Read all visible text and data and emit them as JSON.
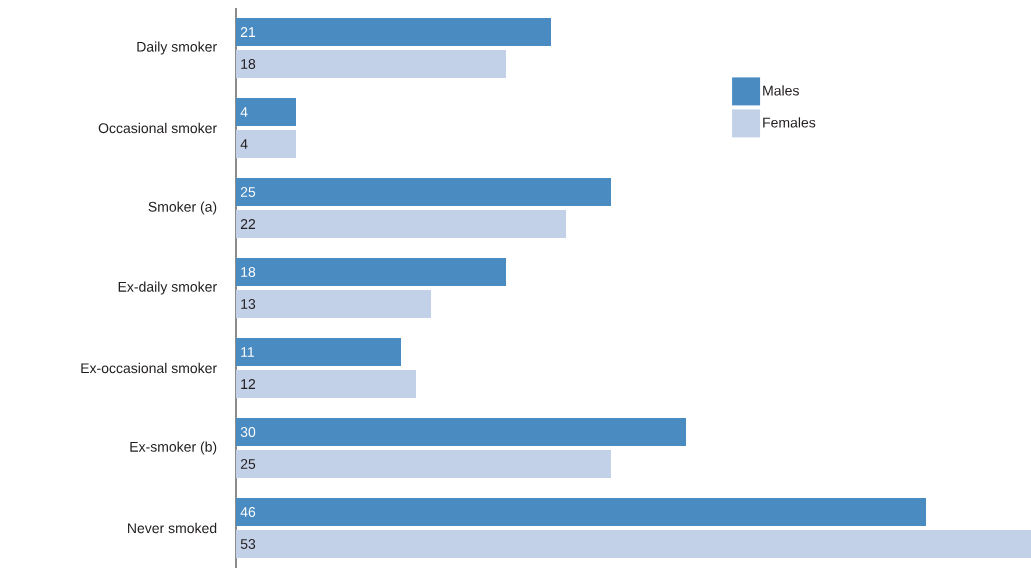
{
  "chart_data": {
    "type": "bar",
    "orientation": "horizontal",
    "categories": [
      "Daily smoker",
      "Occasional smoker",
      "Smoker (a)",
      "Ex-daily smoker",
      "Ex-occasional smoker",
      "Ex-smoker (b)",
      "Never smoked"
    ],
    "series": [
      {
        "name": "Males",
        "color": "#4a8bc2",
        "values": [
          21,
          4,
          25,
          18,
          11,
          30,
          46
        ]
      },
      {
        "name": "Females",
        "color": "#c2d1e7",
        "values": [
          18,
          4,
          22,
          13,
          12,
          25,
          53
        ]
      }
    ],
    "data_labels": true,
    "legend": "top right"
  }
}
